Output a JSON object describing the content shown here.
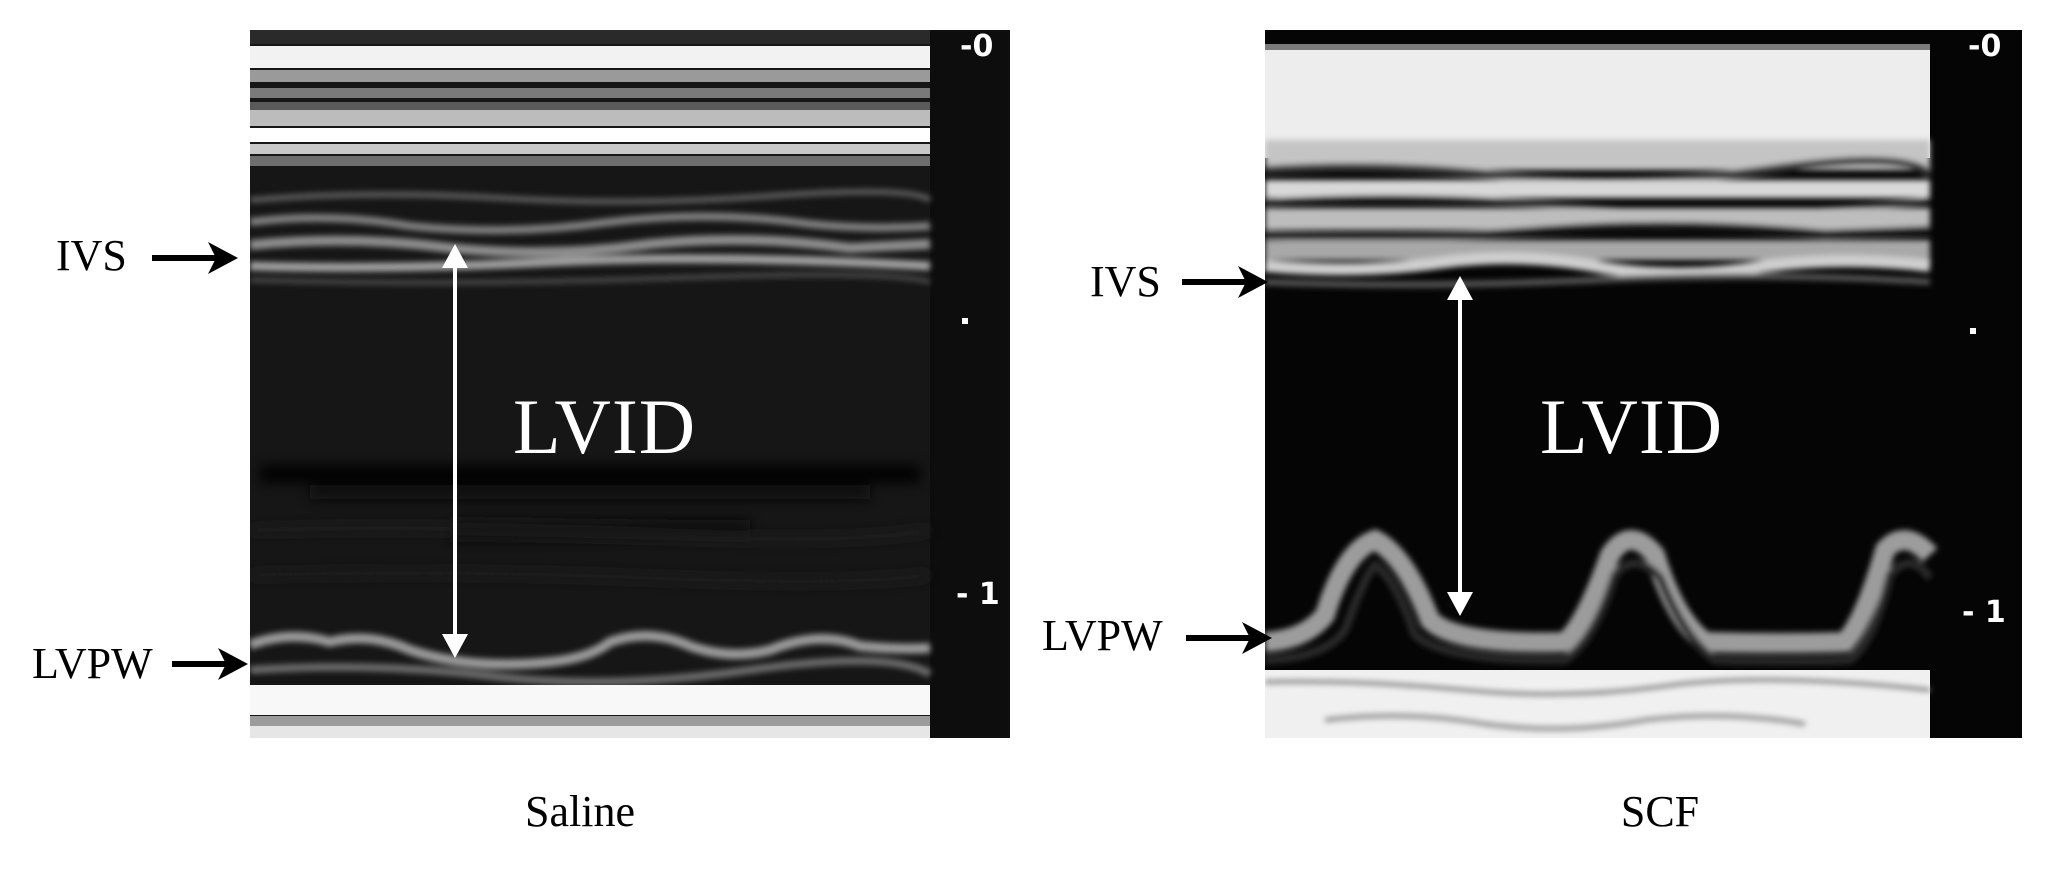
{
  "panels": [
    {
      "caption": "Saline",
      "labels": {
        "top": "IVS",
        "bottom": "LVPW",
        "measure": "LVID"
      },
      "scale": {
        "top": "-0",
        "bottom": "- 1"
      }
    },
    {
      "caption": "SCF",
      "labels": {
        "top": "IVS",
        "bottom": "LVPW",
        "measure": "LVID"
      },
      "scale": {
        "top": "-0",
        "bottom": "- 1"
      }
    }
  ],
  "colors": {
    "background": "#ffffff",
    "echo_dark": "#111111",
    "annotation": "#ffffff",
    "text": "#000000"
  }
}
